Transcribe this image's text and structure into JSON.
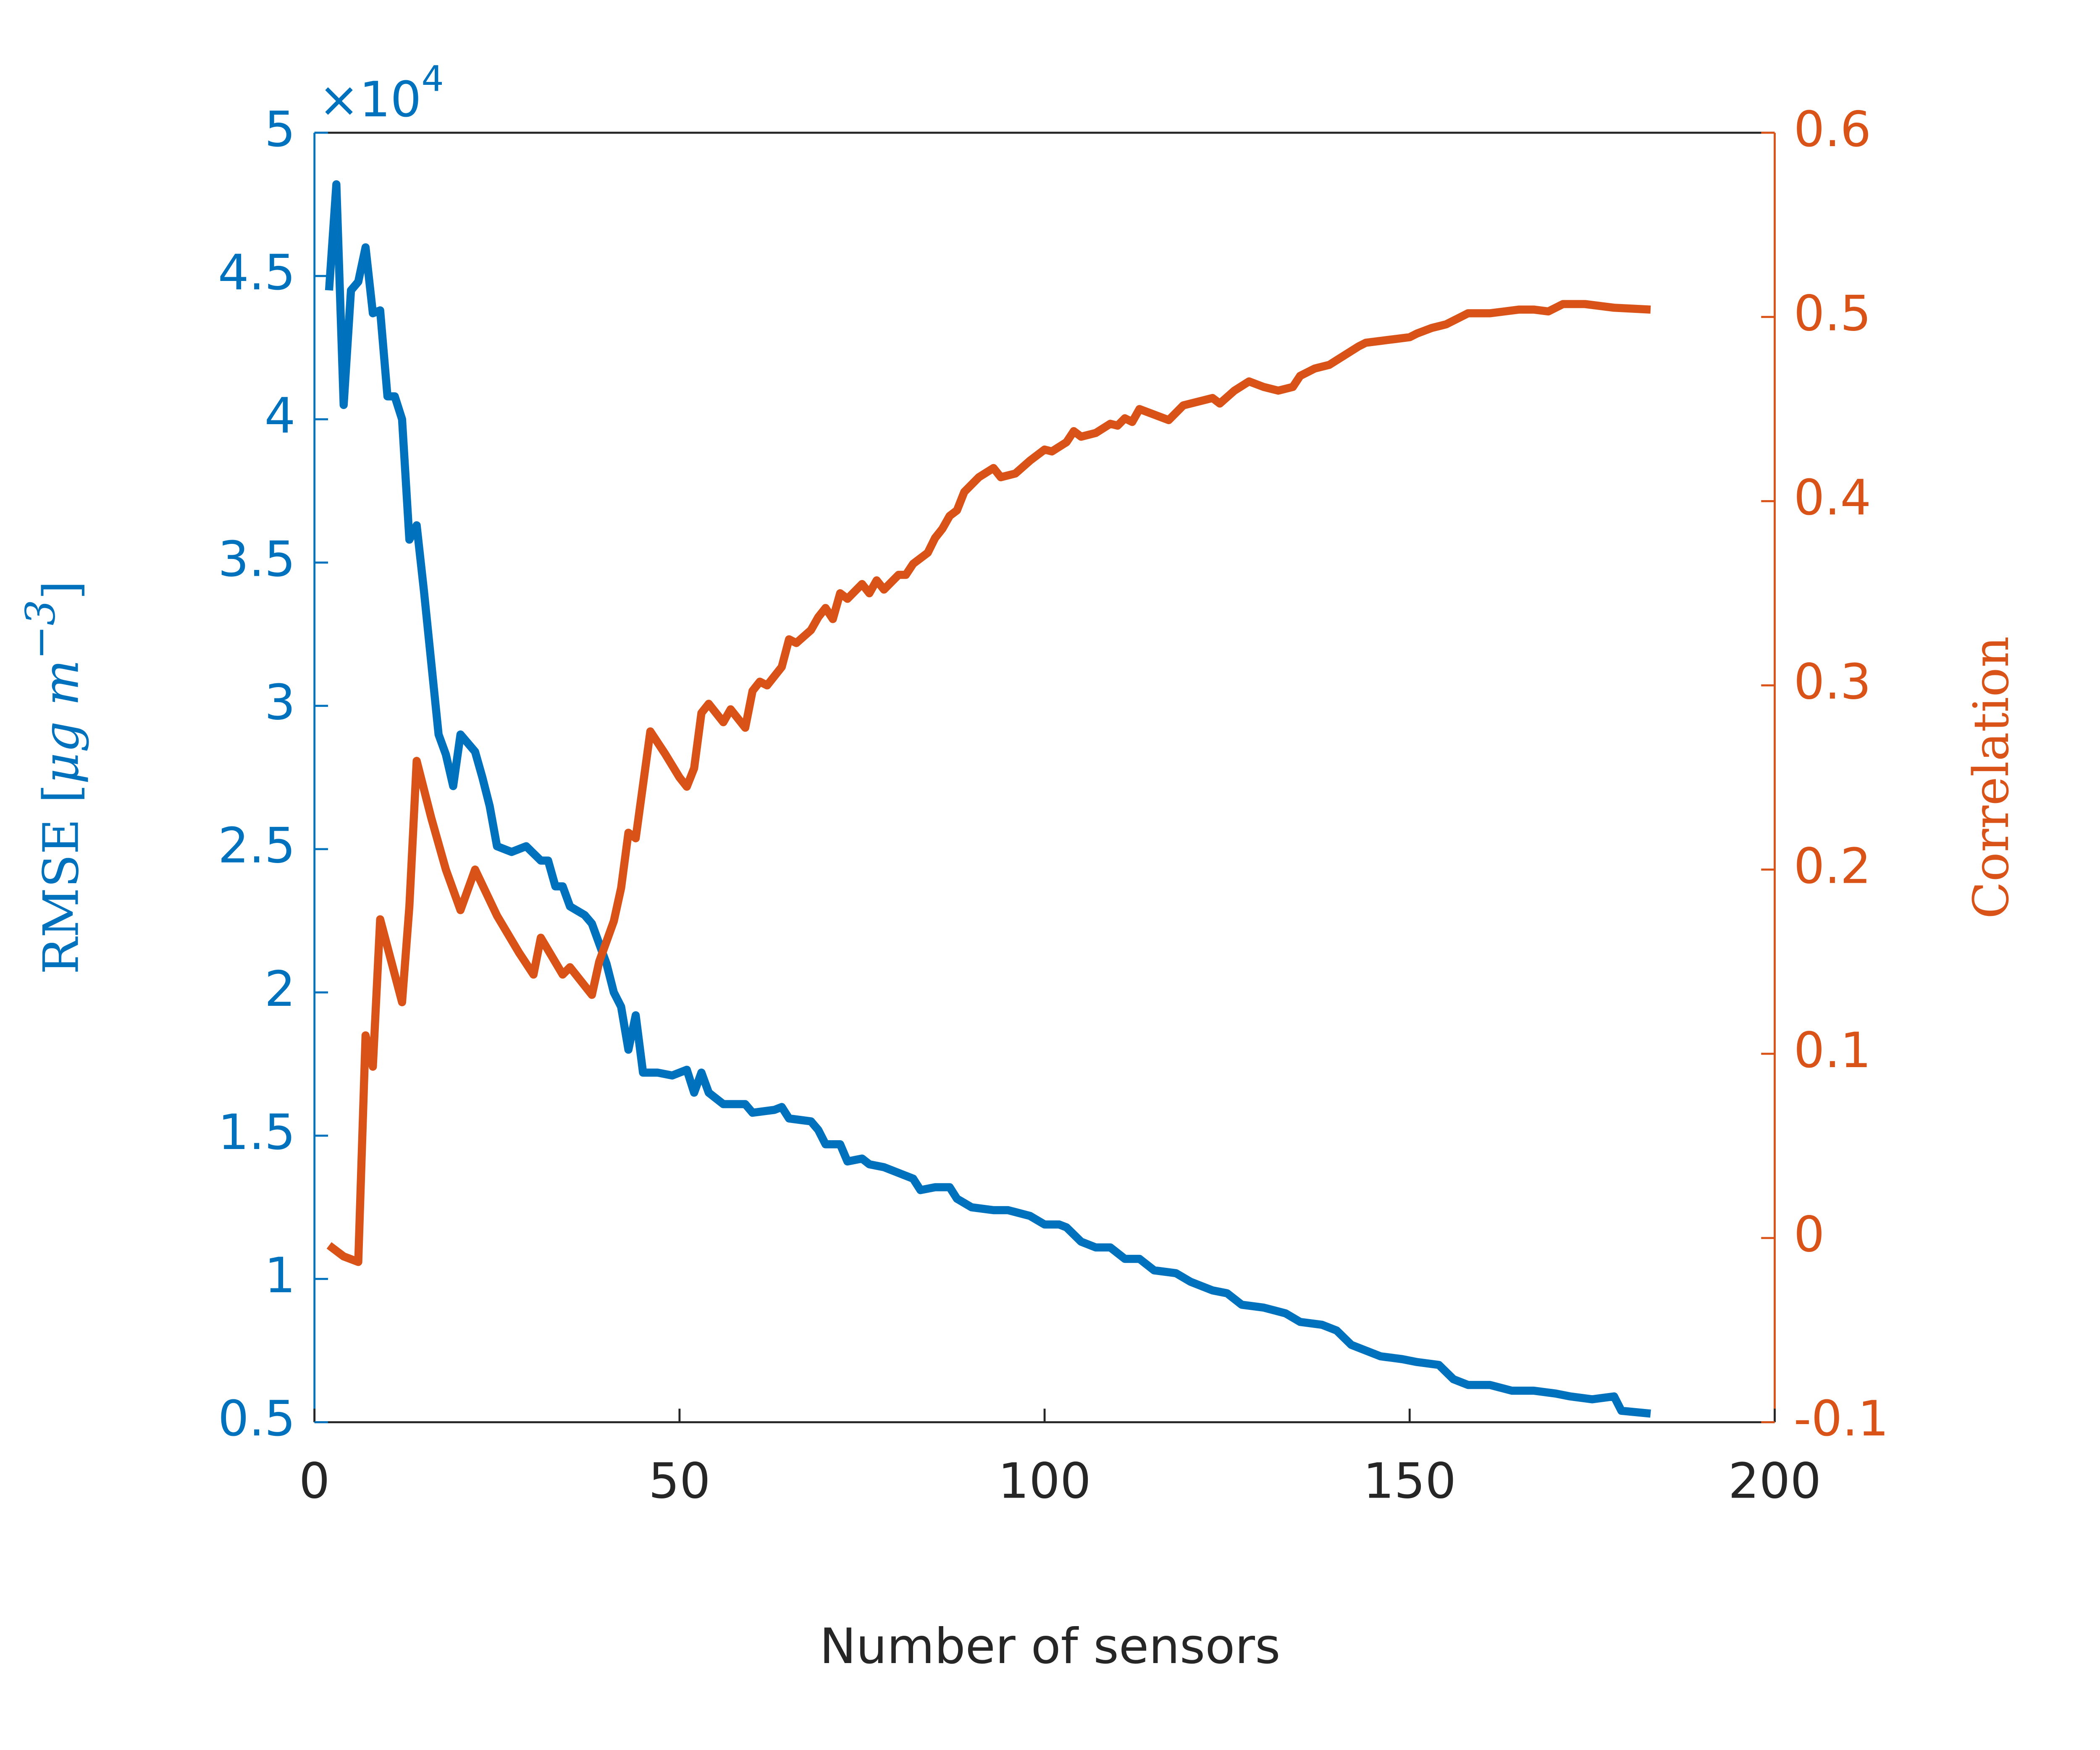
{
  "chart_data": {
    "type": "line",
    "xlabel": "Number of sensors",
    "ylabel": "RMSE [",
    "ylabel_unit": "μg m",
    "ylabel_unit_exponent": "−3",
    "ylabel_end": "]",
    "y_multiplier": "×10",
    "y_multiplier_exponent": "4",
    "y2label": "Correlation",
    "xlim": [
      0,
      200
    ],
    "xticks": [
      0,
      50,
      100,
      150,
      200
    ],
    "ylim": [
      0.5,
      5
    ],
    "yticks": [
      0.5,
      1,
      1.5,
      2,
      2.5,
      3,
      3.5,
      4,
      4.5,
      5
    ],
    "y2lim": [
      -0.1,
      0.6
    ],
    "y2ticks": [
      -0.1,
      0,
      0.1,
      0.2,
      0.3,
      0.4,
      0.5,
      0.6
    ],
    "y_color": "#0072BD",
    "y2_color": "#D95319",
    "series": [
      {
        "name": "RMSE",
        "color": "#0072BD",
        "axis": "y",
        "x": [
          2,
          3,
          4,
          5,
          6,
          7,
          8,
          9,
          10,
          11,
          12,
          13,
          14,
          15,
          16,
          17,
          18,
          19,
          20,
          21,
          22,
          23,
          24,
          25,
          27,
          29,
          31,
          32,
          33,
          34,
          35,
          37,
          38,
          39,
          40,
          41,
          42,
          43,
          44,
          45,
          47,
          49,
          51,
          52,
          53,
          54,
          56,
          59,
          60,
          63,
          64,
          65,
          68,
          69,
          70,
          72,
          73,
          75,
          76,
          78,
          80,
          82,
          83,
          85,
          87,
          88,
          90,
          93,
          95,
          98,
          100,
          102,
          103,
          105,
          107,
          109,
          111,
          113,
          115,
          118,
          120,
          123,
          125,
          127,
          130,
          133,
          135,
          138,
          140,
          142,
          144,
          146,
          149,
          151,
          154,
          156,
          158,
          161,
          164,
          167,
          170,
          172,
          175,
          178,
          179,
          183
        ],
        "values": [
          4.45,
          4.82,
          4.05,
          4.45,
          4.48,
          4.6,
          4.37,
          4.38,
          4.08,
          4.08,
          4.0,
          3.58,
          3.63,
          3.4,
          3.15,
          2.9,
          2.83,
          2.72,
          2.9,
          2.87,
          2.84,
          2.75,
          2.65,
          2.51,
          2.49,
          2.51,
          2.46,
          2.46,
          2.37,
          2.37,
          2.3,
          2.27,
          2.24,
          2.17,
          2.1,
          2.0,
          1.95,
          1.8,
          1.92,
          1.72,
          1.72,
          1.71,
          1.73,
          1.65,
          1.72,
          1.65,
          1.61,
          1.61,
          1.58,
          1.59,
          1.6,
          1.56,
          1.55,
          1.52,
          1.47,
          1.47,
          1.41,
          1.42,
          1.4,
          1.39,
          1.37,
          1.35,
          1.31,
          1.32,
          1.32,
          1.28,
          1.25,
          1.24,
          1.24,
          1.22,
          1.19,
          1.19,
          1.18,
          1.13,
          1.11,
          1.11,
          1.07,
          1.07,
          1.03,
          1.02,
          0.99,
          0.96,
          0.95,
          0.91,
          0.9,
          0.88,
          0.85,
          0.84,
          0.82,
          0.77,
          0.75,
          0.73,
          0.72,
          0.71,
          0.7,
          0.65,
          0.63,
          0.63,
          0.61,
          0.61,
          0.6,
          0.59,
          0.58,
          0.59,
          0.54,
          0.53
        ]
      },
      {
        "name": "Correlation",
        "color": "#D95319",
        "axis": "y2",
        "x": [
          2,
          4,
          6,
          7,
          8,
          9,
          12,
          13,
          14,
          16,
          18,
          20,
          22,
          25,
          28,
          30,
          31,
          34,
          35,
          37,
          38,
          39,
          41,
          42,
          43,
          44,
          46,
          48,
          50,
          51,
          52,
          53,
          54,
          56,
          57,
          59,
          60,
          61,
          62,
          64,
          65,
          66,
          68,
          69,
          70,
          71,
          72,
          73,
          75,
          76,
          77,
          78,
          80,
          81,
          82,
          84,
          85,
          86,
          87,
          88,
          89,
          91,
          93,
          94,
          96,
          98,
          100,
          101,
          103,
          104,
          105,
          107,
          109,
          110,
          111,
          112,
          113,
          115,
          117,
          119,
          121,
          123,
          124,
          126,
          128,
          130,
          132,
          134,
          135,
          137,
          139,
          141,
          143,
          144,
          146,
          148,
          150,
          151,
          153,
          155,
          157,
          158,
          161,
          163,
          165,
          167,
          169,
          171,
          174,
          176,
          178,
          183
        ],
        "values": [
          -0.004,
          -0.01,
          -0.013,
          0.11,
          0.093,
          0.173,
          0.128,
          0.18,
          0.259,
          0.228,
          0.2,
          0.178,
          0.2,
          0.175,
          0.155,
          0.143,
          0.163,
          0.143,
          0.147,
          0.137,
          0.132,
          0.15,
          0.172,
          0.19,
          0.22,
          0.217,
          0.275,
          0.263,
          0.25,
          0.245,
          0.255,
          0.285,
          0.29,
          0.28,
          0.287,
          0.277,
          0.297,
          0.302,
          0.3,
          0.31,
          0.325,
          0.323,
          0.33,
          0.337,
          0.342,
          0.336,
          0.35,
          0.347,
          0.355,
          0.35,
          0.357,
          0.352,
          0.36,
          0.36,
          0.366,
          0.372,
          0.38,
          0.385,
          0.392,
          0.395,
          0.405,
          0.413,
          0.418,
          0.413,
          0.415,
          0.422,
          0.428,
          0.427,
          0.432,
          0.438,
          0.435,
          0.437,
          0.442,
          0.441,
          0.445,
          0.443,
          0.45,
          0.447,
          0.444,
          0.452,
          0.454,
          0.456,
          0.453,
          0.46,
          0.465,
          0.462,
          0.46,
          0.462,
          0.468,
          0.472,
          0.474,
          0.479,
          0.484,
          0.486,
          0.487,
          0.488,
          0.489,
          0.491,
          0.494,
          0.496,
          0.5,
          0.502,
          0.502,
          0.503,
          0.504,
          0.504,
          0.503,
          0.507,
          0.507,
          0.506,
          0.505,
          0.504
        ]
      }
    ]
  }
}
